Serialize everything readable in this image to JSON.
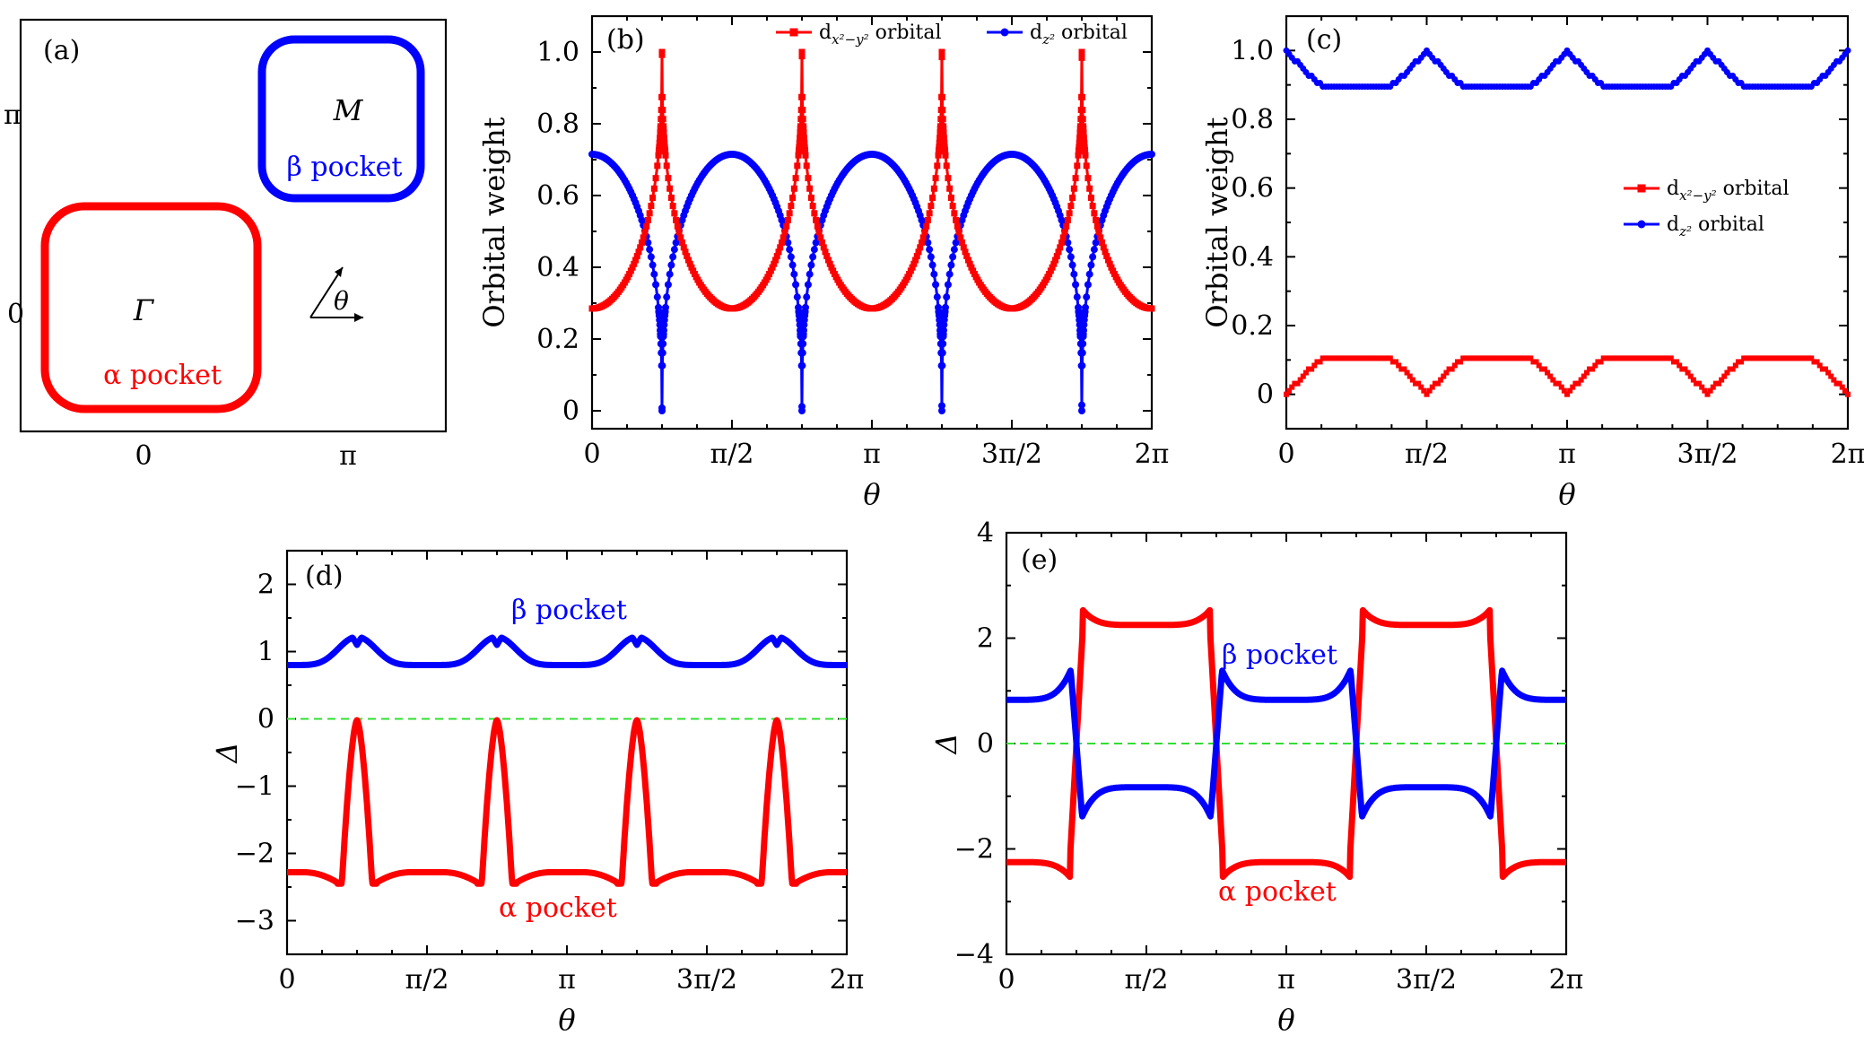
{
  "colors": {
    "alpha": "#ff0000",
    "beta": "#0000ff",
    "dx2y2": "#ff0000",
    "dz2": "#0000ff",
    "zero_line": "#33dd33"
  },
  "panel_a": {
    "label": "(a)",
    "x_ticks": [
      "0",
      "π"
    ],
    "y_ticks": [
      "0",
      "π"
    ],
    "gamma_label": "Γ",
    "m_label": "M",
    "alpha_label": "α pocket",
    "beta_label": "β pocket",
    "theta_label": "θ"
  },
  "theta_ticks": [
    "0",
    "π/2",
    "π",
    "3π/2",
    "2π"
  ],
  "theta_label": "θ",
  "chart_data": [
    {
      "panel": "(b)",
      "type": "line",
      "xlabel": "θ",
      "ylabel": "Orbital weight",
      "xlim": [
        0,
        6.2832
      ],
      "ylim": [
        -0.05,
        1.1
      ],
      "y_ticks": [
        "0",
        "0.2",
        "0.4",
        "0.6",
        "0.8",
        "1.0"
      ],
      "y_tick_values": [
        0,
        0.2,
        0.4,
        0.6,
        0.8,
        1.0
      ],
      "legend": [
        {
          "name": "d",
          "sub": "x²−y²",
          "suffix": "orbital"
        },
        {
          "name": "d",
          "sub": "z²",
          "suffix": "orbital"
        }
      ],
      "series": [
        {
          "name": "dx2-y2 orbital",
          "marker": "square",
          "min": 0.285,
          "max": 1.0,
          "spikes_at": [
            0.7854,
            2.3562,
            3.927,
            5.4978
          ]
        },
        {
          "name": "dz2 orbital",
          "marker": "circle",
          "min": 0.0,
          "max": 0.715,
          "spikes_at": [
            0.7854,
            2.3562,
            3.927,
            5.4978
          ]
        }
      ]
    },
    {
      "panel": "(c)",
      "type": "line",
      "xlabel": "θ",
      "ylabel": "Orbital weight",
      "xlim": [
        0,
        6.2832
      ],
      "ylim": [
        -0.1,
        1.1
      ],
      "y_ticks": [
        "0",
        "0.2",
        "0.4",
        "0.6",
        "0.8",
        "1.0"
      ],
      "y_tick_values": [
        0,
        0.2,
        0.4,
        0.6,
        0.8,
        1.0
      ],
      "legend": [
        {
          "name": "d",
          "sub": "x²−y²",
          "suffix": "orbital"
        },
        {
          "name": "d",
          "sub": "z²",
          "suffix": "orbital"
        }
      ],
      "series": [
        {
          "name": "dx2-y2 orbital",
          "marker": "square",
          "min": 0.0,
          "max": 0.105
        },
        {
          "name": "dz2 orbital",
          "marker": "circle",
          "min": 0.895,
          "max": 1.0
        }
      ]
    },
    {
      "panel": "(d)",
      "type": "line",
      "xlabel": "θ",
      "ylabel": "Δ",
      "xlim": [
        0,
        6.2832
      ],
      "ylim": [
        -3.5,
        2.5
      ],
      "y_ticks": [
        "−3",
        "−2",
        "−1",
        "0",
        "1",
        "2"
      ],
      "y_tick_values": [
        -3,
        -2,
        -1,
        0,
        1,
        2
      ],
      "annotations": [
        "β pocket",
        "α pocket"
      ],
      "series": [
        {
          "name": "β pocket",
          "baseline_min": 0.8,
          "peak": 1.22
        },
        {
          "name": "α pocket",
          "baseline": -2.28,
          "dip": -2.45,
          "peak": -0.02
        }
      ]
    },
    {
      "panel": "(e)",
      "type": "line",
      "xlabel": "θ",
      "ylabel": "Δ",
      "xlim": [
        0,
        6.2832
      ],
      "ylim": [
        -4,
        4
      ],
      "y_ticks": [
        "−4",
        "−2",
        "0",
        "2",
        "4"
      ],
      "y_tick_values": [
        -4,
        -2,
        0,
        2,
        4
      ],
      "annotations": [
        "β pocket",
        "α pocket"
      ],
      "series": [
        {
          "name": "β pocket",
          "amplitude_min": 0.83,
          "amplitude_max": 1.3
        },
        {
          "name": "α pocket",
          "amplitude_min": 2.25,
          "amplitude_max": 2.5
        }
      ]
    }
  ]
}
